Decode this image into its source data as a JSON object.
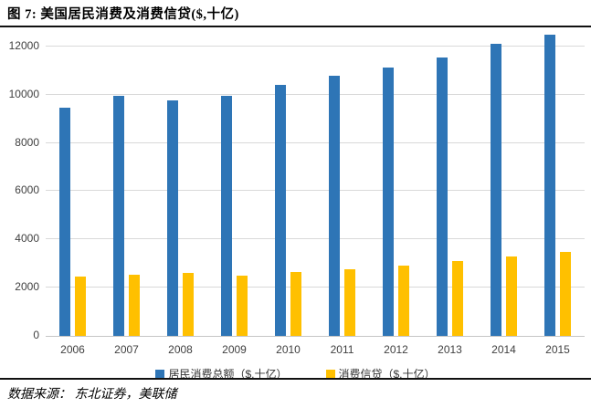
{
  "header": {
    "title": "图  7:  美国居民消费及消费信贷($,十亿)"
  },
  "footer": {
    "source": "数据来源：  东北证券，美联储"
  },
  "colors": {
    "consumption_blue": "#2E75B6",
    "credit_yellow": "#FFC000",
    "gridline": "#D9D9D9",
    "axis_line": "#C6C6C6",
    "tick_text": "#404040"
  },
  "chart_data": {
    "type": "bar",
    "title": "图 7: 美国居民消费及消费信贷($,十亿)",
    "categories": [
      "2006",
      "2007",
      "2008",
      "2009",
      "2010",
      "2011",
      "2012",
      "2013",
      "2014",
      "2015"
    ],
    "series": [
      {
        "name": "居民消费总额（$,十亿）",
        "color": "#2E75B6",
        "values": [
          9450,
          9950,
          9750,
          9950,
          10400,
          10800,
          11150,
          11550,
          12100,
          12500
        ]
      },
      {
        "name": "消费信贷（$,十亿）",
        "color": "#FFC000",
        "values": [
          2450,
          2550,
          2600,
          2500,
          2650,
          2750,
          2900,
          3100,
          3300,
          3500
        ]
      }
    ],
    "xlabel": "",
    "ylabel": "",
    "ylim": [
      0,
      12000
    ],
    "yticks": [
      0,
      2000,
      4000,
      6000,
      8000,
      10000,
      12000
    ],
    "grid": true,
    "legend_position": "bottom"
  }
}
